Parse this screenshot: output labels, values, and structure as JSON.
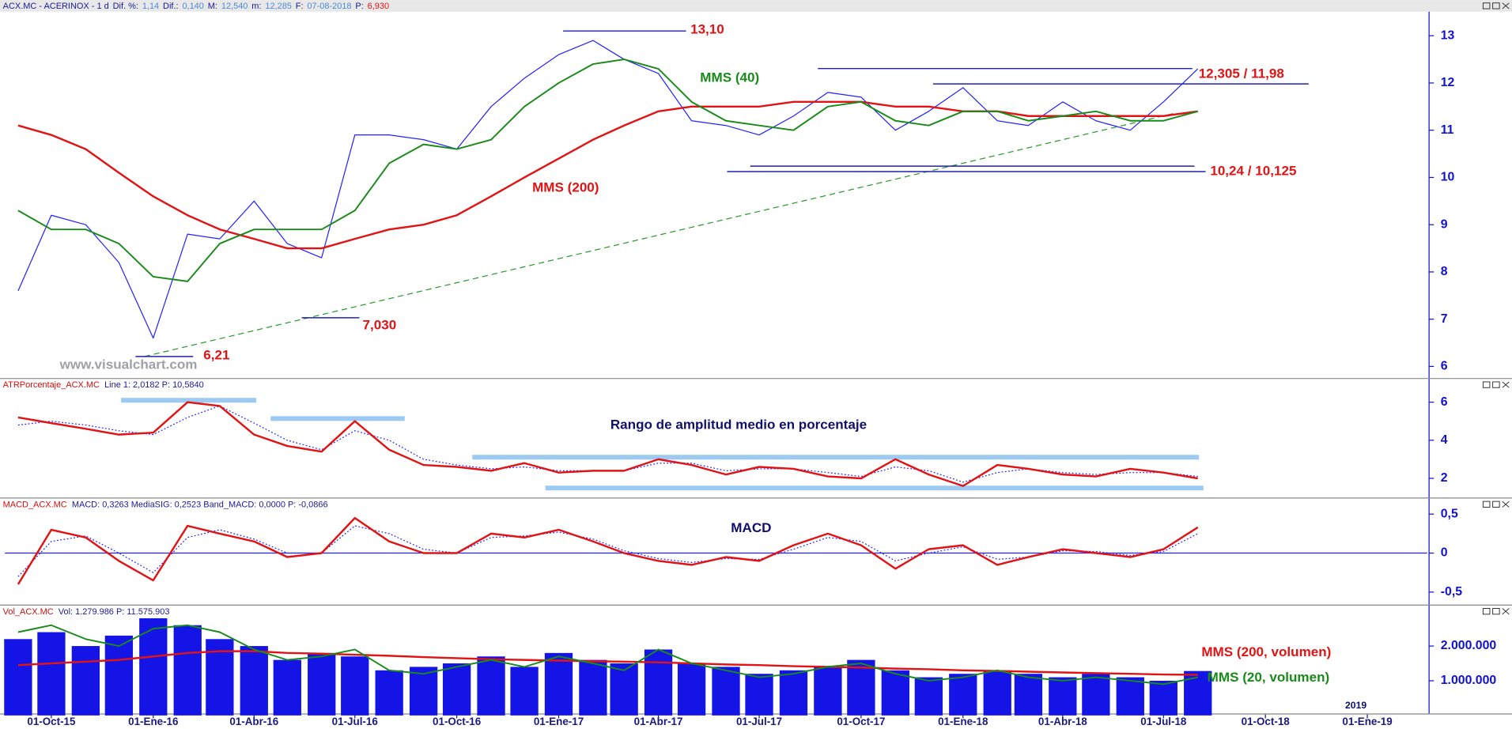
{
  "header": {
    "name": "ACX.MC - ACERINOX  - 1 d",
    "items": [
      "Dif. %:",
      "1,14",
      "Dif.:",
      "0,140",
      "M:",
      "12,540",
      "m:",
      "12,285",
      "F:",
      "07-08-2018",
      "P:",
      "6,930"
    ]
  },
  "chart_data": [
    {
      "type": "line",
      "x": [
        "2015-09-01",
        "2015-10-01",
        "2015-11-01",
        "2015-12-01",
        "2016-01-01",
        "2016-02-01",
        "2016-03-01",
        "2016-04-01",
        "2016-05-01",
        "2016-06-01",
        "2016-07-01",
        "2016-08-01",
        "2016-09-01",
        "2016-10-01",
        "2016-11-01",
        "2016-12-01",
        "2017-01-01",
        "2017-02-01",
        "2017-03-01",
        "2017-04-01",
        "2017-05-01",
        "2017-06-01",
        "2017-07-01",
        "2017-08-01",
        "2017-09-01",
        "2017-10-01",
        "2017-11-01",
        "2017-12-01",
        "2018-01-01",
        "2018-02-01",
        "2018-03-01",
        "2018-04-01",
        "2018-05-01",
        "2018-06-01",
        "2018-07-01",
        "2018-08-01"
      ],
      "xlim": [
        "2015-08-20",
        "2019-02-24"
      ],
      "ylim": [
        5.755,
        13.51
      ],
      "yticks": [
        6,
        7,
        8,
        9,
        10,
        11,
        12,
        13
      ],
      "series": [
        {
          "color": "#2323ff",
          "width": 1,
          "values": [
            7.6,
            9.2,
            9.0,
            8.2,
            6.6,
            8.8,
            8.7,
            9.5,
            8.6,
            8.3,
            10.9,
            10.9,
            10.8,
            10.6,
            11.5,
            12.1,
            12.6,
            12.9,
            12.5,
            12.2,
            11.2,
            11.1,
            10.9,
            11.3,
            11.8,
            11.7,
            11.0,
            11.4,
            11.9,
            11.2,
            11.1,
            11.6,
            11.2,
            11.0,
            11.6,
            12.3
          ]
        },
        {
          "name": "MMS (200)",
          "color": "#e01414",
          "width": 2,
          "values": [
            11.1,
            10.9,
            10.6,
            10.1,
            9.6,
            9.2,
            8.9,
            8.7,
            8.5,
            8.5,
            8.7,
            8.9,
            9.0,
            9.2,
            9.6,
            10.0,
            10.4,
            10.8,
            11.1,
            11.4,
            11.5,
            11.5,
            11.5,
            11.6,
            11.6,
            11.6,
            11.5,
            11.5,
            11.4,
            11.4,
            11.3,
            11.3,
            11.3,
            11.3,
            11.3,
            11.4
          ]
        },
        {
          "name": "MMS (40)",
          "color": "#1a8a1a",
          "width": 1.6,
          "values": [
            9.3,
            8.9,
            8.9,
            8.6,
            7.9,
            7.8,
            8.6,
            8.9,
            8.9,
            8.9,
            9.3,
            10.3,
            10.7,
            10.6,
            10.8,
            11.5,
            12.0,
            12.4,
            12.5,
            12.3,
            11.6,
            11.2,
            11.1,
            11.0,
            11.5,
            11.6,
            11.2,
            11.1,
            11.4,
            11.4,
            11.2,
            11.3,
            11.4,
            11.2,
            11.2,
            11.4
          ]
        }
      ],
      "levels_color": "#2020b0",
      "levels": [
        {
          "value": 13.1,
          "from": "2017-01-05",
          "to": "2017-04-26"
        },
        {
          "value": 12.305,
          "from": "2017-08-23",
          "to": "2018-07-27"
        },
        {
          "value": 11.98,
          "from": "2017-12-05",
          "to": "2018-11-09"
        },
        {
          "value": 10.24,
          "from": "2017-06-23",
          "to": "2018-07-29"
        },
        {
          "value": 10.125,
          "from": "2017-06-02",
          "to": "2018-08-08"
        },
        {
          "value": 7.03,
          "from": "2016-05-14",
          "to": "2016-07-05"
        },
        {
          "value": 6.21,
          "from": "2015-12-16",
          "to": "2016-02-06"
        }
      ],
      "trendline": {
        "color": "#2a9a2a",
        "x": [
          "2015-12-24",
          "2018-07-13"
        ],
        "values": [
          6.21,
          11.37
        ]
      },
      "annotations": [
        {
          "text": "13,10",
          "color": "#e01414"
        },
        {
          "text": "MMS (40)",
          "color": "#1a8a1a"
        },
        {
          "text": "12,305 / 11,98",
          "color": "#e01414"
        },
        {
          "text": "10,24 / 10,125",
          "color": "#e01414"
        },
        {
          "text": "MMS (200)",
          "color": "#e01414"
        },
        {
          "text": "7,030",
          "color": "#e01414"
        },
        {
          "text": "6,21",
          "color": "#e01414"
        },
        {
          "text": "www.visualchart.com",
          "color": "#a0a0a8"
        }
      ]
    },
    {
      "type": "line",
      "title": "ATRPorcentaje_ACX.MC",
      "info": "Line 1: 2,0182  P: 10,5840",
      "x": [
        "2015-09-01",
        "2015-10-01",
        "2015-11-01",
        "2015-12-01",
        "2016-01-01",
        "2016-02-01",
        "2016-03-01",
        "2016-04-01",
        "2016-05-01",
        "2016-06-01",
        "2016-07-01",
        "2016-08-01",
        "2016-09-01",
        "2016-10-01",
        "2016-11-01",
        "2016-12-01",
        "2017-01-01",
        "2017-02-01",
        "2017-03-01",
        "2017-04-01",
        "2017-05-01",
        "2017-06-01",
        "2017-07-01",
        "2017-08-01",
        "2017-09-01",
        "2017-10-01",
        "2017-11-01",
        "2017-12-01",
        "2018-01-01",
        "2018-02-01",
        "2018-03-01",
        "2018-04-01",
        "2018-05-01",
        "2018-06-01",
        "2018-07-01",
        "2018-08-01"
      ],
      "xlim": [
        "2015-08-20",
        "2019-02-24"
      ],
      "ylim": [
        0.99,
        7.22
      ],
      "yticks": [
        2,
        4,
        6
      ],
      "bands_color": "#9ccaf2",
      "bands": [
        {
          "value": 6.1,
          "from": "2015-12-03",
          "to": "2016-04-03"
        },
        {
          "value": 5.14,
          "from": "2016-04-16",
          "to": "2016-08-15"
        },
        {
          "value": 3.11,
          "from": "2016-10-15",
          "to": "2018-08-02"
        },
        {
          "value": 1.49,
          "from": "2016-12-20",
          "to": "2018-08-06"
        }
      ],
      "series": [
        {
          "color": "#2323ff",
          "width": 1,
          "style": "dotted",
          "values": [
            4.8,
            5.0,
            4.8,
            4.5,
            4.3,
            5.2,
            5.8,
            4.9,
            4.0,
            3.5,
            4.5,
            4.0,
            3.0,
            2.7,
            2.5,
            2.6,
            2.4,
            2.4,
            2.4,
            2.8,
            2.8,
            2.4,
            2.5,
            2.5,
            2.3,
            2.1,
            2.6,
            2.4,
            1.8,
            2.3,
            2.5,
            2.3,
            2.2,
            2.3,
            2.3,
            2.1
          ]
        },
        {
          "color": "#e01414",
          "width": 2,
          "values": [
            5.2,
            4.9,
            4.6,
            4.3,
            4.4,
            6.0,
            5.8,
            4.3,
            3.7,
            3.4,
            5.0,
            3.5,
            2.7,
            2.6,
            2.4,
            2.8,
            2.3,
            2.4,
            2.4,
            3.0,
            2.7,
            2.2,
            2.6,
            2.5,
            2.1,
            2.0,
            3.0,
            2.2,
            1.6,
            2.7,
            2.5,
            2.2,
            2.1,
            2.5,
            2.3,
            2.0
          ]
        }
      ],
      "annotations": [
        {
          "text": "Rango de amplitud medio en porcentaje",
          "color": "#10106a"
        }
      ]
    },
    {
      "type": "line",
      "title": "MACD_ACX.MC",
      "info": "MACD: 0,3263  MediaSIG: 0,2523  Band_MACD: 0,0000  P: -0,0866",
      "x": [
        "2015-09-01",
        "2015-10-01",
        "2015-11-01",
        "2015-12-01",
        "2016-01-01",
        "2016-02-01",
        "2016-03-01",
        "2016-04-01",
        "2016-05-01",
        "2016-06-01",
        "2016-07-01",
        "2016-08-01",
        "2016-09-01",
        "2016-10-01",
        "2016-11-01",
        "2016-12-01",
        "2017-01-01",
        "2017-02-01",
        "2017-03-01",
        "2017-04-01",
        "2017-05-01",
        "2017-06-01",
        "2017-07-01",
        "2017-08-01",
        "2017-09-01",
        "2017-10-01",
        "2017-11-01",
        "2017-12-01",
        "2018-01-01",
        "2018-02-01",
        "2018-03-01",
        "2018-04-01",
        "2018-05-01",
        "2018-06-01",
        "2018-07-01",
        "2018-08-01"
      ],
      "xlim": [
        "2015-08-20",
        "2019-02-24"
      ],
      "ylim": [
        -0.66,
        0.7
      ],
      "yticks": [
        {
          "value": 0.5,
          "label": "0,5"
        },
        0,
        {
          "value": -0.5,
          "label": "-0,5"
        }
      ],
      "zero_line_color": "#2323ff",
      "series": [
        {
          "color": "#2323ff",
          "width": 1,
          "style": "dotted",
          "values": [
            -0.3,
            0.15,
            0.22,
            0.0,
            -0.25,
            0.2,
            0.3,
            0.18,
            0.0,
            0.0,
            0.35,
            0.25,
            0.05,
            0.0,
            0.2,
            0.22,
            0.27,
            0.18,
            0.03,
            -0.07,
            -0.12,
            -0.07,
            -0.08,
            0.05,
            0.2,
            0.15,
            -0.1,
            0.0,
            0.08,
            -0.08,
            -0.05,
            0.03,
            0.02,
            -0.03,
            0.02,
            0.25
          ]
        },
        {
          "color": "#e01414",
          "width": 2,
          "values": [
            -0.4,
            0.3,
            0.2,
            -0.1,
            -0.35,
            0.35,
            0.25,
            0.15,
            -0.05,
            0.0,
            0.45,
            0.15,
            0.0,
            0.0,
            0.25,
            0.2,
            0.3,
            0.15,
            0.0,
            -0.1,
            -0.15,
            -0.05,
            -0.1,
            0.1,
            0.25,
            0.1,
            -0.2,
            0.05,
            0.1,
            -0.15,
            -0.05,
            0.05,
            0.0,
            -0.05,
            0.05,
            0.33
          ]
        }
      ],
      "annotations": [
        {
          "text": "MACD",
          "color": "#10106a"
        }
      ]
    },
    {
      "type": "bar",
      "title": "Vol_ACX.MC",
      "info": "Vol: 1.279.986  P: 11.575.903",
      "x": [
        "2015-09-01",
        "2015-10-01",
        "2015-11-01",
        "2015-12-01",
        "2016-01-01",
        "2016-02-01",
        "2016-03-01",
        "2016-04-01",
        "2016-05-01",
        "2016-06-01",
        "2016-07-01",
        "2016-08-01",
        "2016-09-01",
        "2016-10-01",
        "2016-11-01",
        "2016-12-01",
        "2017-01-01",
        "2017-02-01",
        "2017-03-01",
        "2017-04-01",
        "2017-05-01",
        "2017-06-01",
        "2017-07-01",
        "2017-08-01",
        "2017-09-01",
        "2017-10-01",
        "2017-11-01",
        "2017-12-01",
        "2018-01-01",
        "2018-02-01",
        "2018-03-01",
        "2018-04-01",
        "2018-05-01",
        "2018-06-01",
        "2018-07-01",
        "2018-08-01"
      ],
      "xlim": [
        "2015-08-20",
        "2019-02-24"
      ],
      "xticks": [
        {
          "value": "2015-10-01",
          "label": "01-Oct-15"
        },
        {
          "value": "2016-01-01",
          "label": "01-Ene-16"
        },
        {
          "value": "2016-04-01",
          "label": "01-Abr-16"
        },
        {
          "value": "2016-07-01",
          "label": "01-Jul-16"
        },
        {
          "value": "2016-10-01",
          "label": "01-Oct-16"
        },
        {
          "value": "2017-01-01",
          "label": "01-Ene-17"
        },
        {
          "value": "2017-04-01",
          "label": "01-Abr-17"
        },
        {
          "value": "2017-07-01",
          "label": "01-Jul-17"
        },
        {
          "value": "2017-10-01",
          "label": "01-Oct-17"
        },
        {
          "value": "2018-01-01",
          "label": "01-Ene-18"
        },
        {
          "value": "2018-04-01",
          "label": "01-Abr-18"
        },
        {
          "value": "2018-07-01",
          "label": "01-Jul-18"
        },
        {
          "value": "2018-10-01",
          "label": "01-Oct-18"
        },
        {
          "value": "2019-01-01",
          "label": "01-Ene-19"
        }
      ],
      "ylim": [
        0,
        3167000
      ],
      "yticks": [
        {
          "value": 1000000,
          "label": "1.000.000"
        },
        {
          "value": 2000000,
          "label": "2.000.000"
        }
      ],
      "series": [
        {
          "type": "bar",
          "color": "#1414e6",
          "values": [
            2200000,
            2400000,
            2000000,
            2300000,
            2800000,
            2600000,
            2200000,
            2000000,
            1600000,
            1800000,
            1700000,
            1300000,
            1400000,
            1500000,
            1700000,
            1400000,
            1800000,
            1600000,
            1500000,
            1900000,
            1500000,
            1400000,
            1200000,
            1300000,
            1400000,
            1600000,
            1300000,
            1100000,
            1200000,
            1300000,
            1200000,
            1100000,
            1200000,
            1100000,
            1000000,
            1279986
          ]
        },
        {
          "type": "line",
          "name": "MMS (200, volumen)",
          "color": "#e01414",
          "width": 2,
          "values": [
            1450000,
            1500000,
            1550000,
            1600000,
            1700000,
            1800000,
            1850000,
            1850000,
            1800000,
            1780000,
            1750000,
            1720000,
            1680000,
            1650000,
            1620000,
            1600000,
            1580000,
            1560000,
            1550000,
            1530000,
            1500000,
            1470000,
            1450000,
            1420000,
            1400000,
            1380000,
            1350000,
            1330000,
            1300000,
            1280000,
            1260000,
            1240000,
            1220000,
            1200000,
            1180000,
            1170000
          ]
        },
        {
          "type": "line",
          "name": "MMS (20, volumen)",
          "color": "#1a8a1a",
          "width": 1.6,
          "values": [
            2400000,
            2600000,
            2200000,
            2000000,
            2500000,
            2600000,
            2400000,
            1900000,
            1600000,
            1700000,
            1900000,
            1300000,
            1200000,
            1400000,
            1600000,
            1400000,
            1700000,
            1500000,
            1300000,
            1900000,
            1500000,
            1300000,
            1100000,
            1200000,
            1400000,
            1500000,
            1200000,
            1000000,
            1100000,
            1300000,
            1100000,
            1000000,
            1100000,
            1000000,
            900000,
            1100000
          ]
        }
      ],
      "annotations": [
        {
          "text": "MMS (200, volumen)",
          "color": "#e01414"
        },
        {
          "text": "MMS (20, volumen)",
          "color": "#1a8a1a"
        },
        {
          "text": "2019",
          "color": "#10106a"
        }
      ]
    }
  ]
}
